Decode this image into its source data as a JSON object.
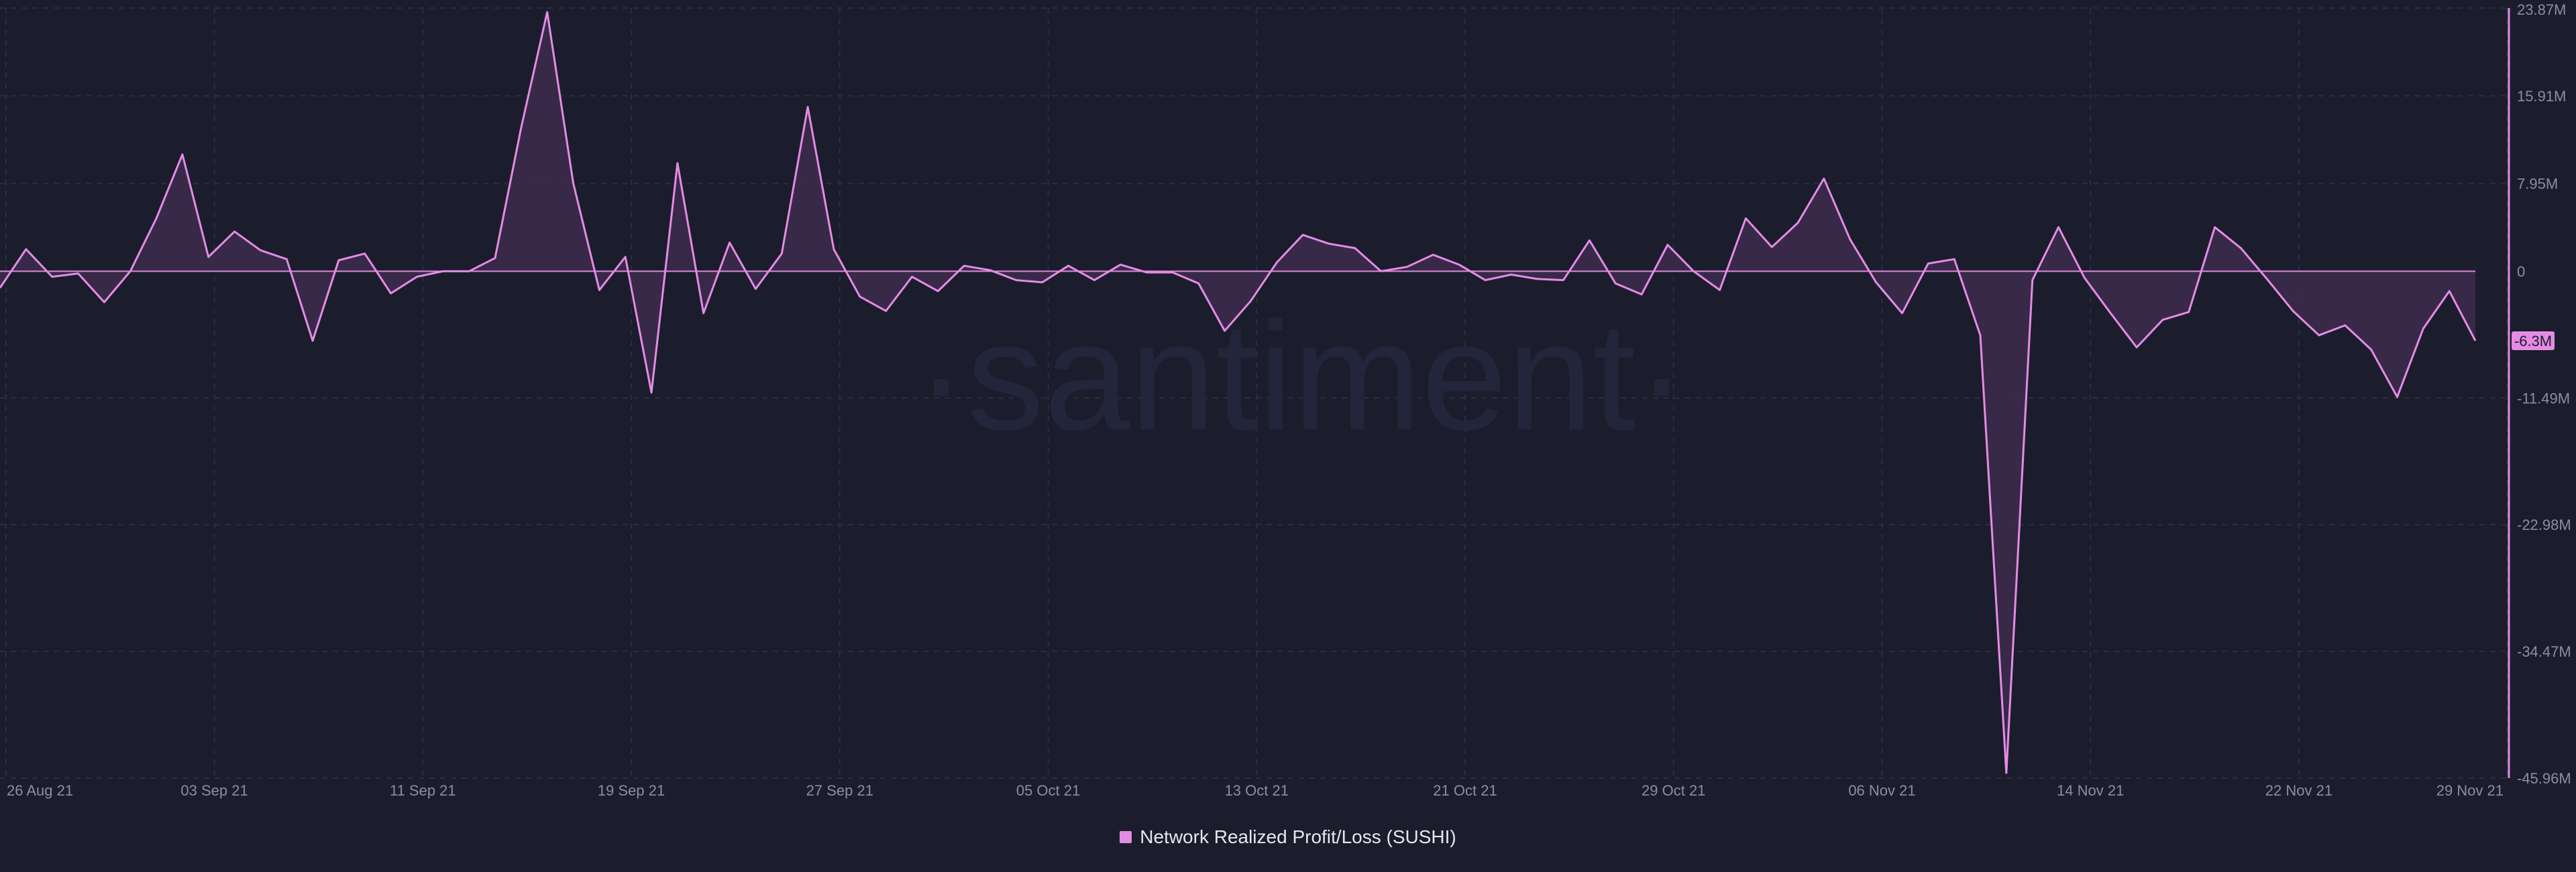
{
  "watermark": "·santiment·",
  "colors": {
    "background": "#1b1d2d",
    "series": "#e58be5",
    "fill": "#3d2c4e",
    "grid": "#2b2e42",
    "current_badge_text": "#1b1d2d"
  },
  "legend": {
    "label": "Network Realized Profit/Loss (SUSHI)"
  },
  "chart_data": {
    "type": "area",
    "ylim": [
      -45.96,
      23.87
    ],
    "y_unit": "M",
    "y_ticks": [
      {
        "value": 23.87,
        "label": "23.87M"
      },
      {
        "value": 15.91,
        "label": "15.91M"
      },
      {
        "value": 7.95,
        "label": "7.95M"
      },
      {
        "value": 0,
        "label": "0"
      },
      {
        "value": -11.49,
        "label": "-11.49M"
      },
      {
        "value": -22.98,
        "label": "-22.98M"
      },
      {
        "value": -34.47,
        "label": "-34.47M"
      },
      {
        "value": -45.96,
        "label": "-45.96M"
      }
    ],
    "x_ticks": [
      {
        "index": 1,
        "label": "26 Aug 21"
      },
      {
        "index": 9,
        "label": "03 Sep 21"
      },
      {
        "index": 17,
        "label": "11 Sep 21"
      },
      {
        "index": 25,
        "label": "19 Sep 21"
      },
      {
        "index": 33,
        "label": "27 Sep 21"
      },
      {
        "index": 41,
        "label": "05 Oct 21"
      },
      {
        "index": 49,
        "label": "13 Oct 21"
      },
      {
        "index": 57,
        "label": "21 Oct 21"
      },
      {
        "index": 65,
        "label": "29 Oct 21"
      },
      {
        "index": 73,
        "label": "06 Nov 21"
      },
      {
        "index": 81,
        "label": "14 Nov 21"
      },
      {
        "index": 89,
        "label": "22 Nov 21"
      },
      {
        "index": 97,
        "label": "29 Nov 21"
      }
    ],
    "current_value": {
      "value": -6.3,
      "label": "-6.3M"
    },
    "series": [
      {
        "name": "Network Realized Profit/Loss (SUSHI)",
        "values": [
          -1.5,
          2.0,
          -0.5,
          -0.2,
          -2.8,
          0.0,
          4.8,
          10.6,
          1.3,
          3.6,
          1.9,
          1.1,
          -6.3,
          1.0,
          1.6,
          -2.0,
          -0.5,
          0.0,
          0.0,
          1.2,
          13.0,
          23.5,
          8.0,
          -1.7,
          1.3,
          -11.0,
          9.8,
          -3.8,
          2.6,
          -1.6,
          1.6,
          14.9,
          2.0,
          -2.3,
          -3.6,
          -0.5,
          -1.8,
          0.5,
          0.1,
          -0.8,
          -1.0,
          0.5,
          -0.8,
          0.6,
          -0.1,
          -0.1,
          -1.1,
          -5.4,
          -2.7,
          0.8,
          3.3,
          2.5,
          2.1,
          0.0,
          0.4,
          1.5,
          0.6,
          -0.8,
          -0.3,
          -0.7,
          -0.8,
          2.8,
          -1.1,
          -2.1,
          2.4,
          0.0,
          -1.7,
          4.8,
          2.2,
          4.4,
          8.4,
          2.9,
          -1.0,
          -3.8,
          0.7,
          1.1,
          -5.8,
          -45.5,
          -0.8,
          4.0,
          -0.6,
          -3.8,
          -6.9,
          -4.4,
          -3.7,
          4.0,
          2.1,
          -0.7,
          -3.6,
          -5.8,
          -4.9,
          -7.1,
          -11.4,
          -5.2,
          -1.8,
          -6.3
        ]
      }
    ]
  }
}
